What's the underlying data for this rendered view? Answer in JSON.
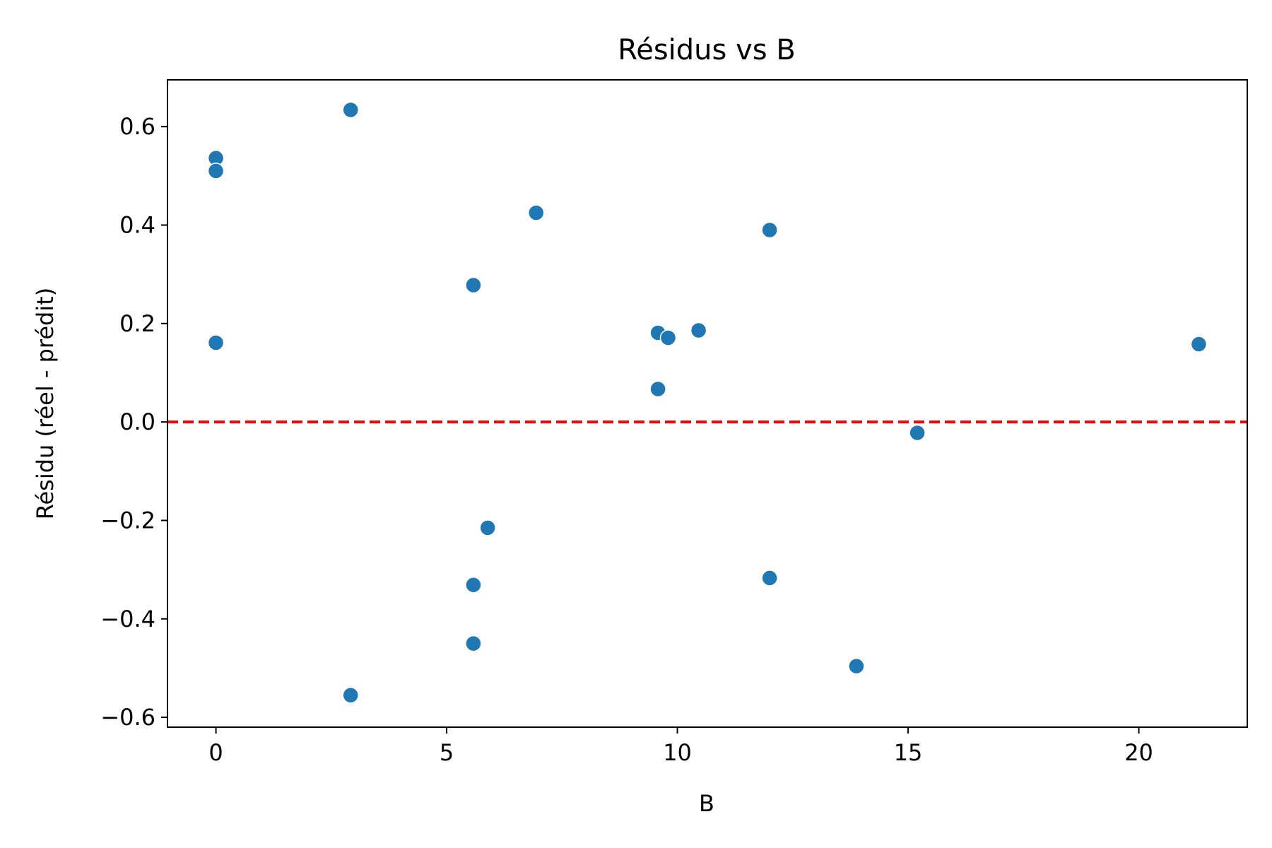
{
  "chart_data": {
    "type": "scatter",
    "title": "Résidus vs B",
    "xlabel": "B",
    "ylabel": "Résidu (réel - prédit)",
    "xlim": [
      -1.05,
      22.35
    ],
    "ylim": [
      -0.62,
      0.695
    ],
    "xticks": [
      0,
      5,
      10,
      15,
      20
    ],
    "xtick_labels": [
      "0",
      "5",
      "10",
      "15",
      "20"
    ],
    "yticks": [
      -0.6,
      -0.4,
      -0.2,
      0.0,
      0.2,
      0.4,
      0.6
    ],
    "ytick_labels": [
      "−0.6",
      "−0.4",
      "−0.2",
      "0.0",
      "0.2",
      "0.4",
      "0.6"
    ],
    "grid": false,
    "reference_line": {
      "y": 0.0,
      "style": "dashed",
      "color": "#ff0000"
    },
    "colors": {
      "points": "#1f77b4",
      "reference": "#ff0000",
      "axes": "#000000"
    },
    "points": [
      {
        "x": 0.0,
        "y": 0.536
      },
      {
        "x": 0.0,
        "y": 0.51
      },
      {
        "x": 0.0,
        "y": 0.161
      },
      {
        "x": 2.92,
        "y": 0.634
      },
      {
        "x": 2.92,
        "y": -0.555
      },
      {
        "x": 5.58,
        "y": 0.278
      },
      {
        "x": 5.58,
        "y": -0.331
      },
      {
        "x": 5.58,
        "y": -0.45
      },
      {
        "x": 5.89,
        "y": -0.215
      },
      {
        "x": 6.94,
        "y": 0.425
      },
      {
        "x": 9.58,
        "y": 0.181
      },
      {
        "x": 9.8,
        "y": 0.171
      },
      {
        "x": 9.58,
        "y": 0.067
      },
      {
        "x": 10.46,
        "y": 0.186
      },
      {
        "x": 12.0,
        "y": 0.39
      },
      {
        "x": 12.0,
        "y": -0.317
      },
      {
        "x": 13.88,
        "y": -0.496
      },
      {
        "x": 15.2,
        "y": -0.022
      },
      {
        "x": 21.3,
        "y": 0.158
      }
    ]
  }
}
